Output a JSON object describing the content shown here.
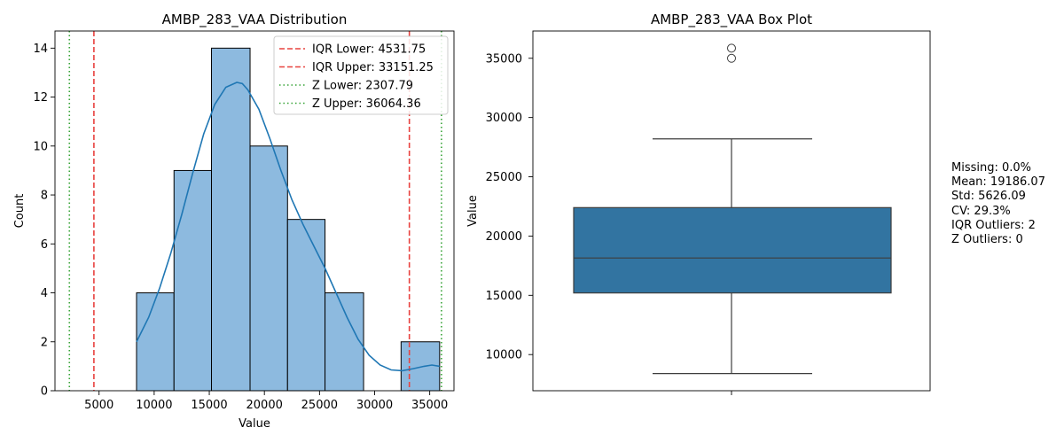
{
  "chart_data": [
    {
      "type": "bar",
      "title": "AMBP_283_VAA Distribution",
      "xlabel": "Value",
      "ylabel": "Count",
      "xlim": [
        1000,
        37200
      ],
      "ylim": [
        0,
        14.7
      ],
      "x_ticks": [
        5000,
        10000,
        15000,
        20000,
        25000,
        30000,
        35000
      ],
      "y_ticks": [
        0,
        2,
        4,
        6,
        8,
        10,
        12,
        14
      ],
      "bins": [
        {
          "x0": 8400,
          "x1": 11800,
          "count": 4
        },
        {
          "x0": 11800,
          "x1": 15200,
          "count": 9
        },
        {
          "x0": 15200,
          "x1": 18700,
          "count": 14
        },
        {
          "x0": 18700,
          "x1": 22100,
          "count": 10
        },
        {
          "x0": 22100,
          "x1": 25500,
          "count": 7
        },
        {
          "x0": 25500,
          "x1": 29000,
          "count": 4
        },
        {
          "x0": 32400,
          "x1": 35900,
          "count": 2
        }
      ],
      "kde": {
        "x": [
          8400,
          9500,
          10500,
          11500,
          12500,
          13500,
          14500,
          15500,
          16500,
          17500,
          18000,
          18500,
          19500,
          20500,
          21500,
          22500,
          23500,
          24500,
          25500,
          26500,
          27500,
          28500,
          29500,
          30500,
          31500,
          32500,
          33500,
          34500,
          35200,
          35900
        ],
        "y": [
          2.0,
          3.0,
          4.2,
          5.6,
          7.2,
          8.9,
          10.5,
          11.7,
          12.4,
          12.6,
          12.55,
          12.3,
          11.5,
          10.3,
          9.0,
          7.8,
          6.8,
          5.9,
          5.0,
          4.0,
          3.0,
          2.1,
          1.45,
          1.05,
          0.85,
          0.82,
          0.9,
          1.0,
          1.05,
          1.0
        ]
      },
      "reference_lines": [
        {
          "name": "IQR Lower: 4531.75",
          "value": 4531.75,
          "color": "#e8423f",
          "style": "dashed"
        },
        {
          "name": "IQR Upper: 33151.25",
          "value": 33151.25,
          "color": "#e8423f",
          "style": "dashed"
        },
        {
          "name": "Z Lower: 2307.79",
          "value": 2307.79,
          "color": "#36a336",
          "style": "dotted"
        },
        {
          "name": "Z Upper: 36064.36",
          "value": 36064.36,
          "color": "#36a336",
          "style": "dotted"
        }
      ],
      "legend_placement": "top-right",
      "bar_color": "#8dbadf",
      "kde_color": "#1f77b4"
    },
    {
      "type": "box",
      "title": "AMBP_283_VAA Box Plot",
      "ylabel": "Value",
      "ylim": [
        6950,
        37300
      ],
      "y_ticks": [
        10000,
        15000,
        20000,
        25000,
        30000,
        35000
      ],
      "box": {
        "whisker_low": 8400,
        "q1": 15200,
        "median": 18150,
        "q3": 22400,
        "whisker_high": 28200
      },
      "outliers": [
        35000,
        35850
      ],
      "box_color": "#3274a1"
    }
  ],
  "stats": {
    "missing": "Missing: 0.0%",
    "mean": "Mean: 19186.07",
    "std": "Std: 5626.09",
    "cv": "CV: 29.3%",
    "iqr_outliers": "IQR Outliers: 2",
    "z_outliers": "Z Outliers: 0"
  }
}
